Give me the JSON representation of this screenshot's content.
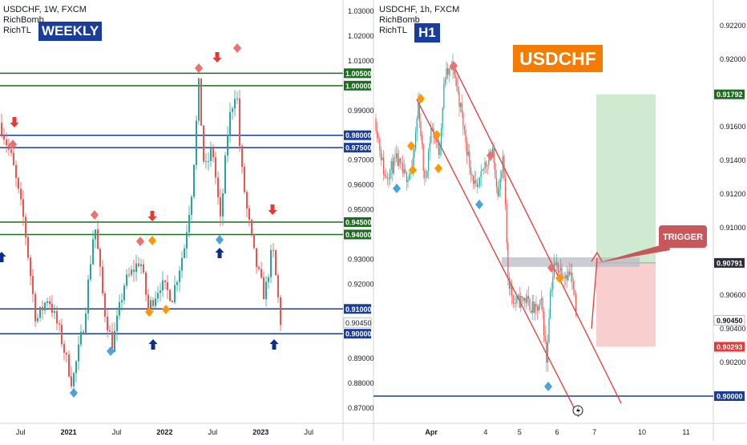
{
  "left_panel": {
    "symbol_line": "USDCHF, 1W, FXCM",
    "indicators": [
      "RichBomb",
      "RichTL"
    ],
    "badge": "WEEKLY",
    "badge_color": "#1a3d9a",
    "price_labels": [
      "1.03000",
      "1.02000",
      "1.01000",
      "0.99000",
      "0.97000",
      "0.96000",
      "0.95000",
      "0.93000",
      "0.92000",
      "0.89000",
      "0.88000",
      "0.87000"
    ],
    "price_values": [
      1.03,
      1.02,
      1.01,
      0.99,
      0.97,
      0.96,
      0.95,
      0.93,
      0.92,
      0.89,
      0.88,
      0.87
    ],
    "level_boxes": [
      {
        "label": "1.00500",
        "value": 1.005,
        "color": "#1e6b22"
      },
      {
        "label": "1.00000",
        "value": 1.0,
        "color": "#1e6b22"
      },
      {
        "label": "0.98000",
        "value": 0.98,
        "color": "#1a3d9a"
      },
      {
        "label": "0.97500",
        "value": 0.975,
        "color": "#1a3d9a"
      },
      {
        "label": "0.94500",
        "value": 0.945,
        "color": "#1e6b22"
      },
      {
        "label": "0.94000",
        "value": 0.94,
        "color": "#1e6b22"
      },
      {
        "label": "0.91000",
        "value": 0.91,
        "color": "#1a3d9a"
      },
      {
        "label": "0.90000",
        "value": 0.9,
        "color": "#1a3d9a"
      }
    ],
    "current_price": {
      "label": "0.90450",
      "value": 0.9045
    },
    "time_labels": [
      "Jul",
      "2021",
      "Jul",
      "2022",
      "Jul",
      "2023",
      "Jul"
    ],
    "time_positions": [
      0.06,
      0.2,
      0.34,
      0.48,
      0.62,
      0.76,
      0.9
    ]
  },
  "right_panel": {
    "symbol_line": "USDCHF, 1h, FXCM",
    "indicators": [
      "RichBomb",
      "RichTL"
    ],
    "badge": "H1",
    "badge_color": "#1a3d9a",
    "title_badge": "USDCHF",
    "title_badge_color": "#f57c00",
    "price_labels": [
      "0.92200",
      "0.92000",
      "0.91600",
      "0.91400",
      "0.91200",
      "0.91000",
      "0.90600",
      "0.90400",
      "0.90200"
    ],
    "price_values": [
      0.922,
      0.92,
      0.916,
      0.914,
      0.912,
      0.91,
      0.906,
      0.904,
      0.902
    ],
    "tp_box": {
      "label": "0.91792",
      "value": 0.91792,
      "color": "#1e6b22"
    },
    "entry_box": {
      "label": "0.90791",
      "value": 0.90791,
      "color": "#2a2e39"
    },
    "current_box": {
      "label": "0.90450",
      "value": 0.9045,
      "color": "#ffffff"
    },
    "sl_box": {
      "label": "0.90293",
      "value": 0.90293,
      "color": "#e53935"
    },
    "support_box": {
      "label": "0.90000",
      "value": 0.9,
      "color": "#1a3d9a"
    },
    "trigger_label": "TRIGGER",
    "time_labels": [
      "Apr",
      "4",
      "5",
      "6",
      "7",
      "10",
      "11"
    ],
    "time_positions": [
      0.17,
      0.33,
      0.43,
      0.54,
      0.65,
      0.79,
      0.92
    ]
  }
}
